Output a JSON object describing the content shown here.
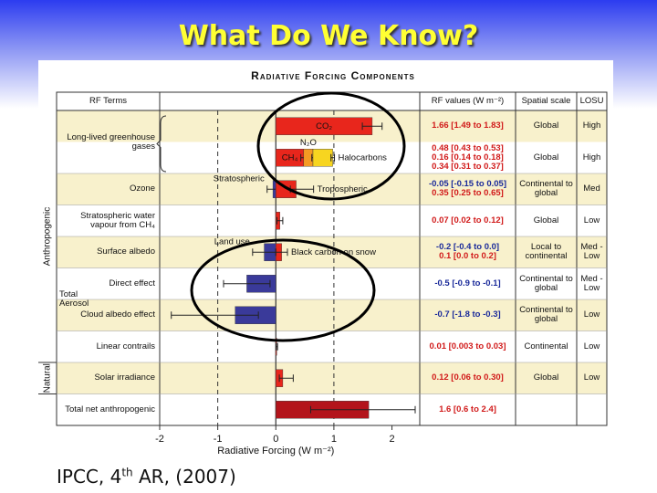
{
  "slide_title": "What Do We Know?",
  "footer": {
    "text": "IPCC, 4",
    "superscript": "th",
    "text_after": " AR, (2007)"
  },
  "chart_data": {
    "type": "bar",
    "orientation": "horizontal",
    "title": "Radiative Forcing Components",
    "xlabel": "Radiative Forcing (W m⁻²)",
    "xlim": [
      -2,
      2.4
    ],
    "xticks": [
      -2,
      -1,
      0,
      1,
      2
    ],
    "reference_lines": [
      -1,
      1
    ],
    "headers": {
      "terms": "RF Terms",
      "values": "RF values (W m⁻²)",
      "spatial_scale": "Spatial scale",
      "losu": "LOSU"
    },
    "anthropogenic_label": "Anthropogenic",
    "natural_label": "Natural",
    "rows": [
      {
        "term": "Long-lived greenhouse gases",
        "lines": [
          {
            "components": [
              {
                "name": "CO₂",
                "value": 1.66,
                "low": 1.49,
                "high": 1.83,
                "value_label": "1.66 [1.49 to 1.83]",
                "color": "#e8261c"
              }
            ],
            "spatial_scale": "Global",
            "losu": "High"
          },
          {
            "components": [
              {
                "name": "CH₄",
                "value": 0.48,
                "low": 0.43,
                "high": 0.53,
                "value_label": "0.48 [0.43 to 0.53]",
                "color": "#e8261c"
              },
              {
                "name": "N₂O",
                "value": 0.16,
                "low": 0.14,
                "high": 0.18,
                "value_label": "0.16 [0.14 to 0.18]",
                "color": "#f59a23"
              },
              {
                "name": "Halocarbons",
                "value": 0.34,
                "low": 0.31,
                "high": 0.37,
                "value_label": "0.34 [0.31 to 0.37]",
                "color": "#f7d520"
              }
            ],
            "spatial_scale": "Global",
            "losu": "High"
          }
        ]
      },
      {
        "term": "Ozone",
        "lines": [
          {
            "components": [
              {
                "name": "Stratospheric",
                "value": -0.05,
                "low": -0.15,
                "high": 0.05,
                "value_label": "-0.05 [-0.15 to 0.05]",
                "color": "#3a3a9a"
              },
              {
                "name": "Tropospheric",
                "value": 0.35,
                "low": 0.25,
                "high": 0.65,
                "value_label": "0.35 [0.25 to 0.65]",
                "color": "#e8261c"
              }
            ],
            "spatial_scale": "Continental to global",
            "losu": "Med"
          }
        ]
      },
      {
        "term": "Stratospheric water vapour from CH₄",
        "lines": [
          {
            "components": [
              {
                "value": 0.07,
                "low": 0.02,
                "high": 0.12,
                "value_label": "0.07 [0.02 to 0.12]",
                "color": "#e8261c"
              }
            ],
            "spatial_scale": "Global",
            "losu": "Low"
          }
        ]
      },
      {
        "term": "Surface albedo",
        "lines": [
          {
            "components": [
              {
                "name": "Land use",
                "value": -0.2,
                "low": -0.4,
                "high": 0.0,
                "value_label": "-0.2 [-0.4 to 0.0]",
                "color": "#3a3a9a"
              },
              {
                "name": "Black carbon on snow",
                "value": 0.1,
                "low": 0.0,
                "high": 0.2,
                "value_label": "0.1 [0.0 to 0.2]",
                "color": "#e8261c"
              }
            ],
            "spatial_scale": "Local to continental",
            "losu": "Med - Low"
          }
        ]
      },
      {
        "term": "Direct effect",
        "group": "Total Aerosol",
        "lines": [
          {
            "components": [
              {
                "value": -0.5,
                "low": -0.9,
                "high": -0.1,
                "value_label": "-0.5 [-0.9 to -0.1]",
                "color": "#3a3a9a"
              }
            ],
            "spatial_scale": "Continental to global",
            "losu": "Med - Low"
          }
        ]
      },
      {
        "term": "Cloud albedo effect",
        "lines": [
          {
            "components": [
              {
                "value": -0.7,
                "low": -1.8,
                "high": -0.3,
                "value_label": "-0.7 [-1.8 to -0.3]",
                "color": "#3a3a9a"
              }
            ],
            "spatial_scale": "Continental to global",
            "losu": "Low"
          }
        ]
      },
      {
        "term": "Linear contrails",
        "lines": [
          {
            "components": [
              {
                "value": 0.01,
                "low": 0.003,
                "high": 0.03,
                "value_label": "0.01 [0.003 to 0.03]",
                "color": "#e8261c"
              }
            ],
            "spatial_scale": "Continental",
            "losu": "Low"
          }
        ]
      },
      {
        "term": "Solar irradiance",
        "lines": [
          {
            "components": [
              {
                "value": 0.12,
                "low": 0.06,
                "high": 0.3,
                "value_label": "0.12 [0.06 to 0.30]",
                "color": "#e8261c"
              }
            ],
            "spatial_scale": "Global",
            "losu": "Low"
          }
        ]
      },
      {
        "term": "Total net anthropogenic",
        "lines": [
          {
            "components": [
              {
                "value": 1.6,
                "low": 0.6,
                "high": 2.4,
                "value_label": "1.6 [0.6 to 2.4]",
                "color": "#b3141b"
              }
            ]
          }
        ]
      }
    ]
  }
}
